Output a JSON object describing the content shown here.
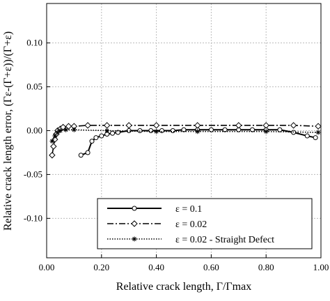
{
  "chart_data": {
    "type": "line",
    "xlabel": "Relative crack length, Γ/Γmax",
    "ylabel": "Relative crack length error, (Γε-(Γ+ε))/(Γ+ε)",
    "xlim": [
      0,
      1
    ],
    "ylim": [
      -0.145,
      0.145
    ],
    "xticks": [
      {
        "value": 0,
        "label": "0.00"
      },
      {
        "value": 0.2,
        "label": "0.20"
      },
      {
        "value": 0.4,
        "label": "0.40"
      },
      {
        "value": 0.6,
        "label": "0.60"
      },
      {
        "value": 0.8,
        "label": "0.80"
      },
      {
        "value": 1,
        "label": "1.00"
      }
    ],
    "yticks": [
      {
        "value": -0.1,
        "label": "-0.10"
      },
      {
        "value": -0.05,
        "label": "-0.05"
      },
      {
        "value": 0,
        "label": "0.00"
      },
      {
        "value": 0.05,
        "label": "0.05"
      },
      {
        "value": 0.1,
        "label": "0.10"
      }
    ],
    "grid": true,
    "legend": "lower right",
    "series": [
      {
        "name": "ε = 0.1",
        "color": "#000000",
        "linestyle": "solid",
        "marker": "circle",
        "x": [
          0.125,
          0.15,
          0.165,
          0.18,
          0.2,
          0.22,
          0.24,
          0.26,
          0.3,
          0.34,
          0.38,
          0.42,
          0.46,
          0.5,
          0.55,
          0.6,
          0.65,
          0.7,
          0.75,
          0.8,
          0.85,
          0.9,
          0.95,
          0.98
        ],
        "values": [
          -0.028,
          -0.025,
          -0.012,
          -0.008,
          -0.006,
          -0.004,
          -0.003,
          -0.002,
          0.0,
          0.0,
          0.0,
          0.0,
          0.0,
          0.001,
          0.001,
          0.001,
          0.001,
          0.001,
          0.001,
          0.001,
          0.001,
          -0.002,
          -0.006,
          -0.008
        ]
      },
      {
        "name": "ε = 0.02",
        "color": "#000000",
        "linestyle": "dashdot",
        "marker": "diamond",
        "x": [
          0.02,
          0.025,
          0.03,
          0.035,
          0.04,
          0.05,
          0.06,
          0.08,
          0.1,
          0.15,
          0.22,
          0.3,
          0.4,
          0.55,
          0.7,
          0.8,
          0.9,
          0.99
        ],
        "values": [
          -0.028,
          -0.018,
          -0.01,
          -0.004,
          0.0,
          0.002,
          0.004,
          0.005,
          0.005,
          0.006,
          0.006,
          0.006,
          0.006,
          0.006,
          0.006,
          0.006,
          0.006,
          0.005
        ]
      },
      {
        "name": "ε = 0.02 - Straight Defect",
        "color": "#000000",
        "linestyle": "dotted",
        "marker": "asterisk",
        "x": [
          0.02,
          0.03,
          0.04,
          0.05,
          0.07,
          0.1,
          0.22,
          0.4,
          0.55,
          0.8,
          0.99
        ],
        "values": [
          -0.012,
          -0.006,
          -0.002,
          0.0,
          0.001,
          0.001,
          0.0,
          -0.001,
          -0.001,
          -0.001,
          -0.002
        ]
      }
    ]
  }
}
